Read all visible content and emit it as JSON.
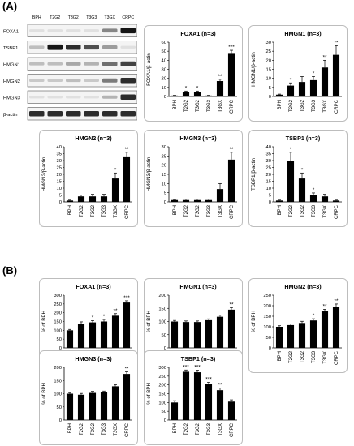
{
  "panels": {
    "a_label": "(A)",
    "b_label": "(B)"
  },
  "blot": {
    "lanes": [
      "BPH",
      "T2G2",
      "T3G2",
      "T3G3",
      "T3GX",
      "CRPC"
    ],
    "rows": [
      "FOXA1",
      "TSBP1",
      "HMGN1",
      "HMGN2",
      "HMGN3",
      "β-actin"
    ],
    "intensity": [
      [
        0.05,
        0.05,
        0.05,
        0.05,
        0.45,
        0.95
      ],
      [
        0.2,
        0.95,
        0.85,
        0.7,
        0.35,
        0.05
      ],
      [
        0.2,
        0.2,
        0.3,
        0.25,
        0.55,
        0.75
      ],
      [
        0.15,
        0.15,
        0.2,
        0.15,
        0.5,
        0.85
      ],
      [
        0.05,
        0.05,
        0.05,
        0.05,
        0.25,
        0.85
      ],
      [
        0.85,
        0.85,
        0.85,
        0.85,
        0.85,
        0.85
      ]
    ]
  },
  "chart_data": [
    {
      "type": "bar",
      "title": "FOXA1 (n=3)",
      "ylabel": "FOXA1/β-actin",
      "ylim": [
        0,
        60
      ],
      "yticks": [
        0,
        10,
        20,
        30,
        40,
        50,
        60
      ],
      "categories": [
        "BPH",
        "T2G2",
        "T3G2",
        "T3G3",
        "T3GX",
        "CRPC"
      ],
      "values": [
        1,
        5,
        5,
        1,
        17,
        48
      ],
      "errors": [
        0.3,
        1,
        1,
        0.3,
        2,
        3
      ],
      "sig": [
        "",
        "*",
        "*",
        "",
        "**",
        "***"
      ]
    },
    {
      "type": "bar",
      "title": "HMGN1 (n=3)",
      "ylabel": "HMGN1/β-actin",
      "ylim": [
        0,
        30
      ],
      "yticks": [
        0,
        5,
        10,
        15,
        20,
        25,
        30
      ],
      "categories": [
        "BPH",
        "T2G2",
        "T3G2",
        "T3G3",
        "T3GX",
        "CRPC"
      ],
      "values": [
        1,
        6,
        8,
        9,
        16,
        23
      ],
      "errors": [
        0.3,
        1.5,
        3,
        2,
        4,
        5
      ],
      "sig": [
        "",
        "*",
        "",
        "*",
        "**",
        "**"
      ]
    },
    {
      "type": "bar",
      "title": "HMGN2 (n=3)",
      "ylabel": "HMGN2/β-actin",
      "ylim": [
        0,
        40
      ],
      "yticks": [
        0,
        5,
        10,
        15,
        20,
        25,
        30,
        35,
        40
      ],
      "categories": [
        "BPH",
        "T2G2",
        "T3G2",
        "T3G3",
        "T3GX",
        "CRPC"
      ],
      "values": [
        1,
        4,
        4,
        4,
        17,
        33
      ],
      "errors": [
        0.3,
        1,
        1.5,
        1.5,
        4,
        3
      ],
      "sig": [
        "",
        "",
        "",
        "",
        "*",
        "**"
      ]
    },
    {
      "type": "bar",
      "title": "HMGN3 (n=3)",
      "ylabel": "HMGN3/β-actin",
      "ylim": [
        0,
        30
      ],
      "yticks": [
        0,
        5,
        10,
        15,
        20,
        25,
        30
      ],
      "categories": [
        "BPH",
        "T2G2",
        "T3G2",
        "T3G3",
        "T3GX",
        "CRPC"
      ],
      "values": [
        1,
        1,
        1,
        1,
        7,
        23
      ],
      "errors": [
        0.3,
        0.5,
        0.5,
        0.5,
        3,
        4
      ],
      "sig": [
        "",
        "",
        "",
        "",
        "",
        "**"
      ]
    },
    {
      "type": "bar",
      "title": "TSBP1 (n=3)",
      "ylabel": "TSBP1/β-actin",
      "ylim": [
        0,
        40
      ],
      "yticks": [
        0,
        5,
        10,
        15,
        20,
        25,
        30,
        35,
        40
      ],
      "categories": [
        "BPH",
        "T2G2",
        "T3G2",
        "T3G3",
        "T3GX",
        "CRPC"
      ],
      "values": [
        1,
        30,
        17,
        5,
        4,
        1
      ],
      "errors": [
        0.3,
        6,
        4,
        1.5,
        1.5,
        0.3
      ],
      "sig": [
        "",
        "*",
        "*",
        "*",
        "",
        ""
      ]
    },
    {
      "type": "bar",
      "title": "FOXA1 (n=3)",
      "ylabel": "% of BPH",
      "ylim": [
        0,
        300
      ],
      "yticks": [
        0,
        50,
        100,
        150,
        200,
        250,
        300
      ],
      "categories": [
        "BPH",
        "T2G2",
        "T3G2",
        "T3G3",
        "T3GX",
        "CRPC"
      ],
      "values": [
        100,
        138,
        145,
        150,
        183,
        258
      ],
      "errors": [
        5,
        10,
        10,
        12,
        12,
        10
      ],
      "sig": [
        "",
        "",
        "*",
        "*",
        "**",
        "***"
      ]
    },
    {
      "type": "bar",
      "title": "HMGN1 (n=3)",
      "ylabel": "% of BPH",
      "ylim": [
        0,
        200
      ],
      "yticks": [
        0,
        50,
        100,
        150,
        200
      ],
      "categories": [
        "BPH",
        "T2G2",
        "T3G2",
        "T3G3",
        "T3GX",
        "CRPC"
      ],
      "values": [
        100,
        98,
        98,
        105,
        118,
        145
      ],
      "errors": [
        4,
        4,
        4,
        5,
        6,
        8
      ],
      "sig": [
        "",
        "",
        "",
        "",
        "",
        "**"
      ]
    },
    {
      "type": "bar",
      "title": "HMGN2 (n=3)",
      "ylabel": "% of BPH",
      "ylim": [
        0,
        250
      ],
      "yticks": [
        0,
        50,
        100,
        150,
        200,
        250
      ],
      "categories": [
        "BPH",
        "T2G2",
        "T3G2",
        "T3G3",
        "T3GX",
        "CRPC"
      ],
      "values": [
        100,
        108,
        118,
        130,
        173,
        196
      ],
      "errors": [
        5,
        6,
        8,
        8,
        10,
        12
      ],
      "sig": [
        "",
        "",
        "",
        "*",
        "**",
        "**"
      ]
    },
    {
      "type": "bar",
      "title": "HMGN3 (n=3)",
      "ylabel": "% of BPH",
      "ylim": [
        0,
        200
      ],
      "yticks": [
        0,
        50,
        100,
        150,
        200
      ],
      "categories": [
        "BPH",
        "T2G2",
        "T3G2",
        "T3G3",
        "T3GX",
        "CRPC"
      ],
      "values": [
        100,
        96,
        103,
        105,
        128,
        175
      ],
      "errors": [
        4,
        5,
        6,
        5,
        6,
        8
      ],
      "sig": [
        "",
        "",
        "",
        "",
        "",
        "**"
      ]
    },
    {
      "type": "bar",
      "title": "TSBP1 (n=3)",
      "ylabel": "% of BPH",
      "ylim": [
        0,
        300
      ],
      "yticks": [
        0,
        50,
        100,
        150,
        200,
        250,
        300
      ],
      "categories": [
        "BPH",
        "T2G2",
        "T3G2",
        "T3G3",
        "T3GX",
        "CRPC"
      ],
      "values": [
        100,
        275,
        272,
        205,
        170,
        105
      ],
      "errors": [
        10,
        10,
        12,
        10,
        12,
        10
      ],
      "sig": [
        "",
        "***",
        "***",
        "***",
        "**",
        ""
      ]
    }
  ]
}
